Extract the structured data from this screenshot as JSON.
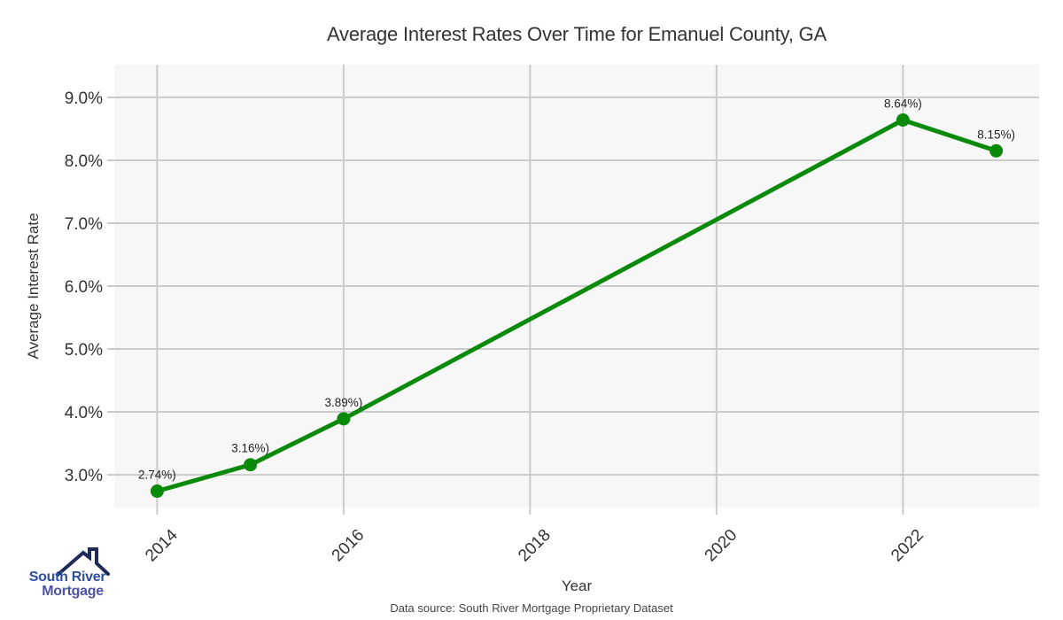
{
  "chart_data": {
    "type": "line",
    "title": "Average Interest Rates Over Time for Emanuel County, GA",
    "xlabel": "Year",
    "ylabel": "Average Interest Rate",
    "series": [
      {
        "name": "Average Interest Rate",
        "x": [
          2014,
          2015,
          2016,
          2022,
          2023
        ],
        "y": [
          2.74,
          3.16,
          3.89,
          8.64,
          8.15
        ],
        "point_labels": [
          "2.74%)",
          "3.16%)",
          "3.89%)",
          "8.64%)",
          "8.15%)"
        ]
      }
    ],
    "x_ticks": [
      2014,
      2016,
      2018,
      2020,
      2022
    ],
    "x_tick_labels": [
      "2014",
      "2016",
      "2018",
      "2020",
      "2022"
    ],
    "y_ticks": [
      3,
      4,
      5,
      6,
      7,
      8,
      9
    ],
    "y_tick_labels": [
      "3.0%",
      "4.0%",
      "5.0%",
      "6.0%",
      "7.0%",
      "8.0%",
      "9.0%"
    ],
    "xlim": [
      2013.54,
      2023.46
    ],
    "ylim": [
      2.48,
      9.52
    ],
    "grid": true,
    "legend": false,
    "colors": {
      "line": "#0a8a0a",
      "marker": "#0a8a0a",
      "plot_bg": "#f7f7f7",
      "grid": "#cbcbcb",
      "tick_text": "#333333",
      "point_label_text": "#222222"
    }
  },
  "footer": {
    "source_note": "Data source: South River Mortgage Proprietary Dataset"
  },
  "logo": {
    "line1": "South River",
    "line2": "Mortgage",
    "colors": {
      "roof": "#1f2b56",
      "line1": "#2d4f9e",
      "line2": "#4f55a4"
    }
  }
}
